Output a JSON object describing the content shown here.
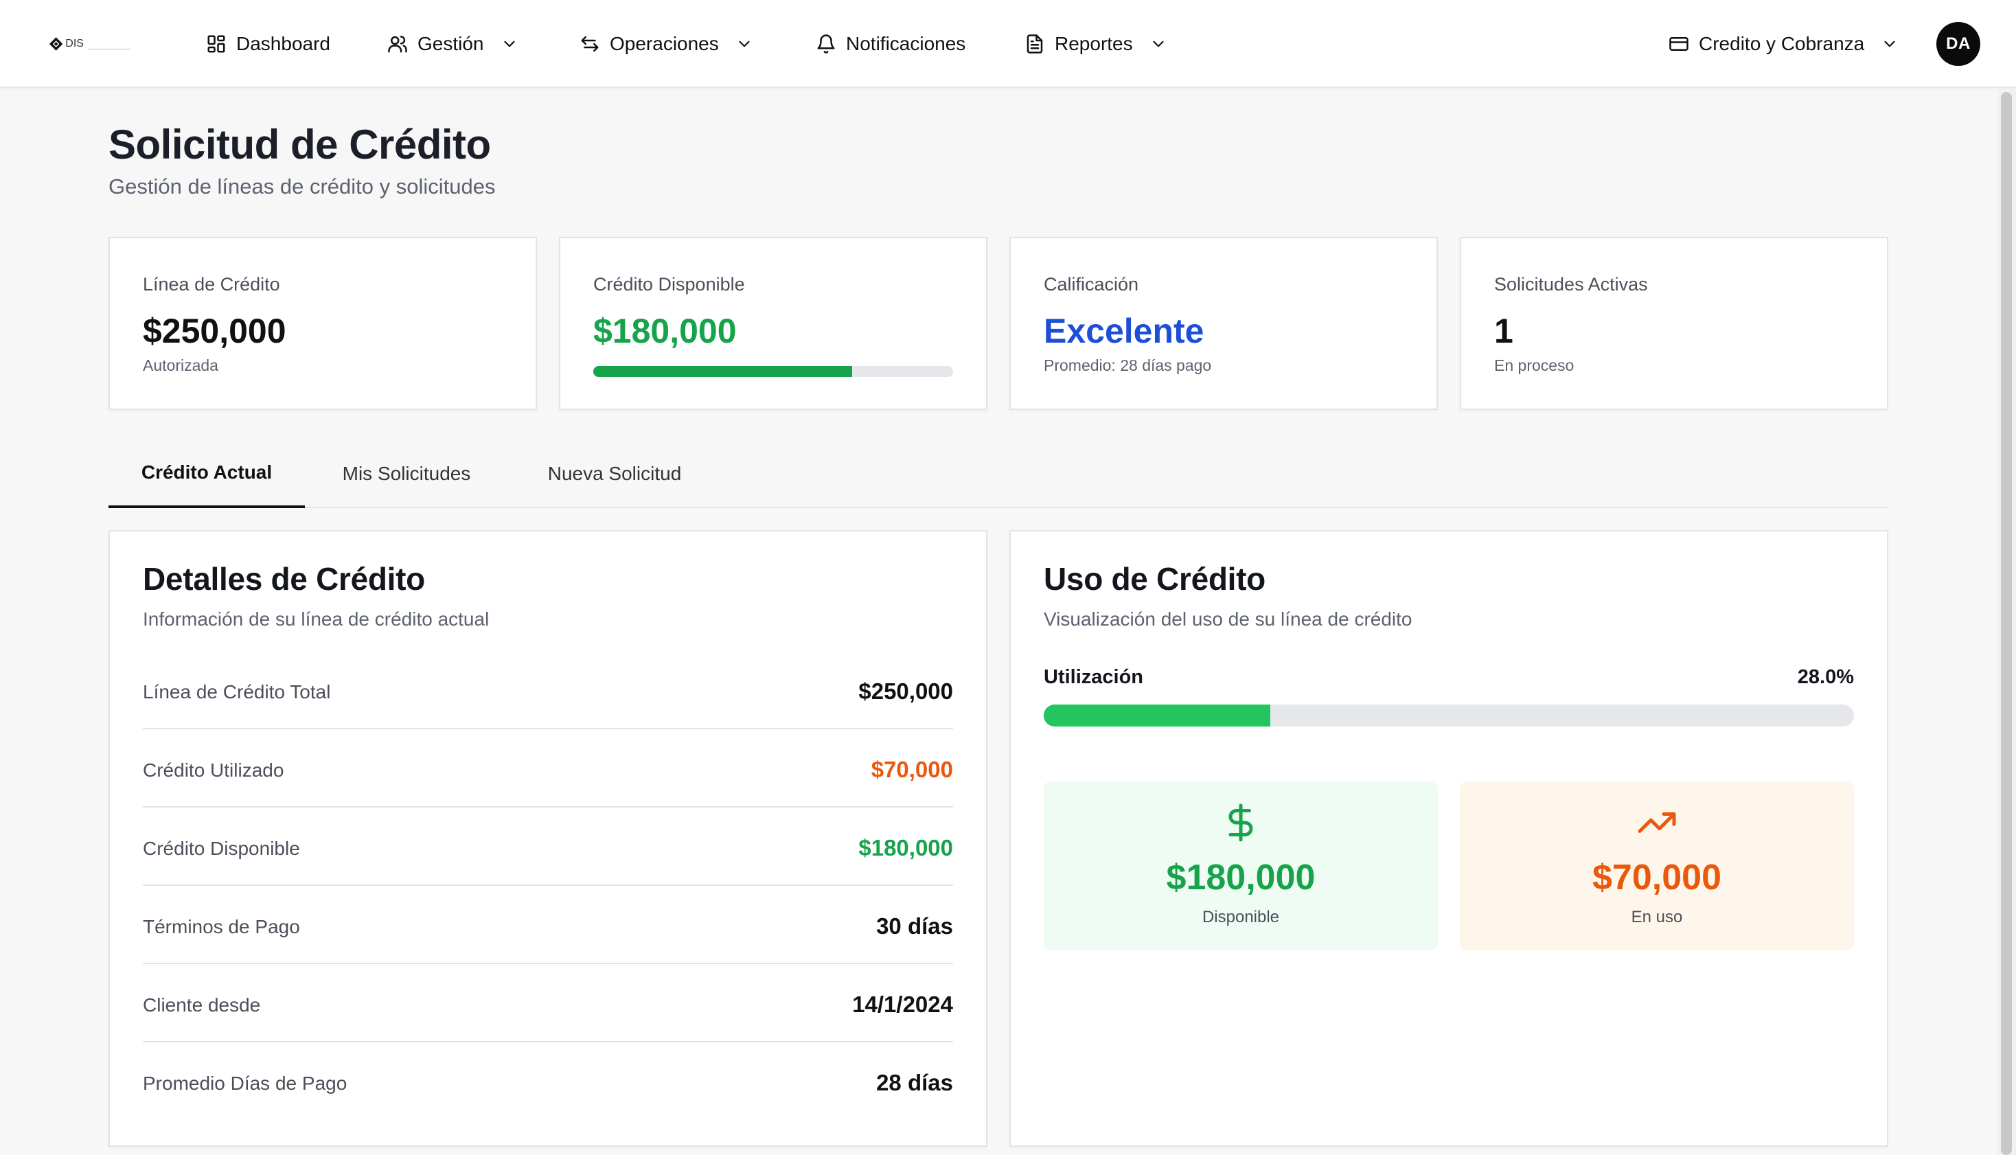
{
  "nav": {
    "logo_text": "DIS",
    "items": [
      {
        "label": "Dashboard"
      },
      {
        "label": "Gestión"
      },
      {
        "label": "Operaciones"
      },
      {
        "label": "Notificaciones"
      },
      {
        "label": "Reportes"
      }
    ],
    "company_selector": "Credito y Cobranza",
    "avatar_initials": "DA"
  },
  "page": {
    "title": "Solicitud de Crédito",
    "subtitle": "Gestión de líneas de crédito y solicitudes"
  },
  "stats": [
    {
      "label": "Línea de Crédito",
      "value": "$250,000",
      "sub": "Autorizada",
      "value_color": "#111111"
    },
    {
      "label": "Crédito Disponible",
      "value": "$180,000",
      "value_color": "#16a34a",
      "progress_fraction": 0.72
    },
    {
      "label": "Calificación",
      "value": "Excelente",
      "sub": "Promedio: 28 días pago",
      "value_color": "#1d4ed8"
    },
    {
      "label": "Solicitudes Activas",
      "value": "1",
      "sub": "En proceso",
      "value_color": "#111111"
    }
  ],
  "tabs": [
    {
      "label": "Crédito Actual",
      "active": true
    },
    {
      "label": "Mis Solicitudes",
      "active": false
    },
    {
      "label": "Nueva Solicitud",
      "active": false
    }
  ],
  "details": {
    "title": "Detalles de Crédito",
    "subtitle": "Información de su línea de crédito actual",
    "rows": [
      {
        "label": "Línea de Crédito Total",
        "value": "$250,000",
        "color": "#111111"
      },
      {
        "label": "Crédito Utilizado",
        "value": "$70,000",
        "color": "#ea580c"
      },
      {
        "label": "Crédito Disponible",
        "value": "$180,000",
        "color": "#16a34a"
      },
      {
        "label": "Términos de Pago",
        "value": "30 días",
        "color": "#111111"
      },
      {
        "label": "Cliente desde",
        "value": "14/1/2024",
        "color": "#111111"
      },
      {
        "label": "Promedio Días de Pago",
        "value": "28 días",
        "color": "#111111"
      }
    ]
  },
  "usage": {
    "title": "Uso de Crédito",
    "subtitle": "Visualización del uso de su línea de crédito",
    "utilization_label": "Utilización",
    "utilization_text": "28.0%",
    "utilization_fraction": 0.28,
    "available": {
      "value": "$180,000",
      "label": "Disponible",
      "icon": "dollar-icon",
      "color": "#16a34a"
    },
    "in_use": {
      "value": "$70,000",
      "label": "En uso",
      "icon": "trending-up-icon",
      "color": "#ea580c"
    }
  }
}
